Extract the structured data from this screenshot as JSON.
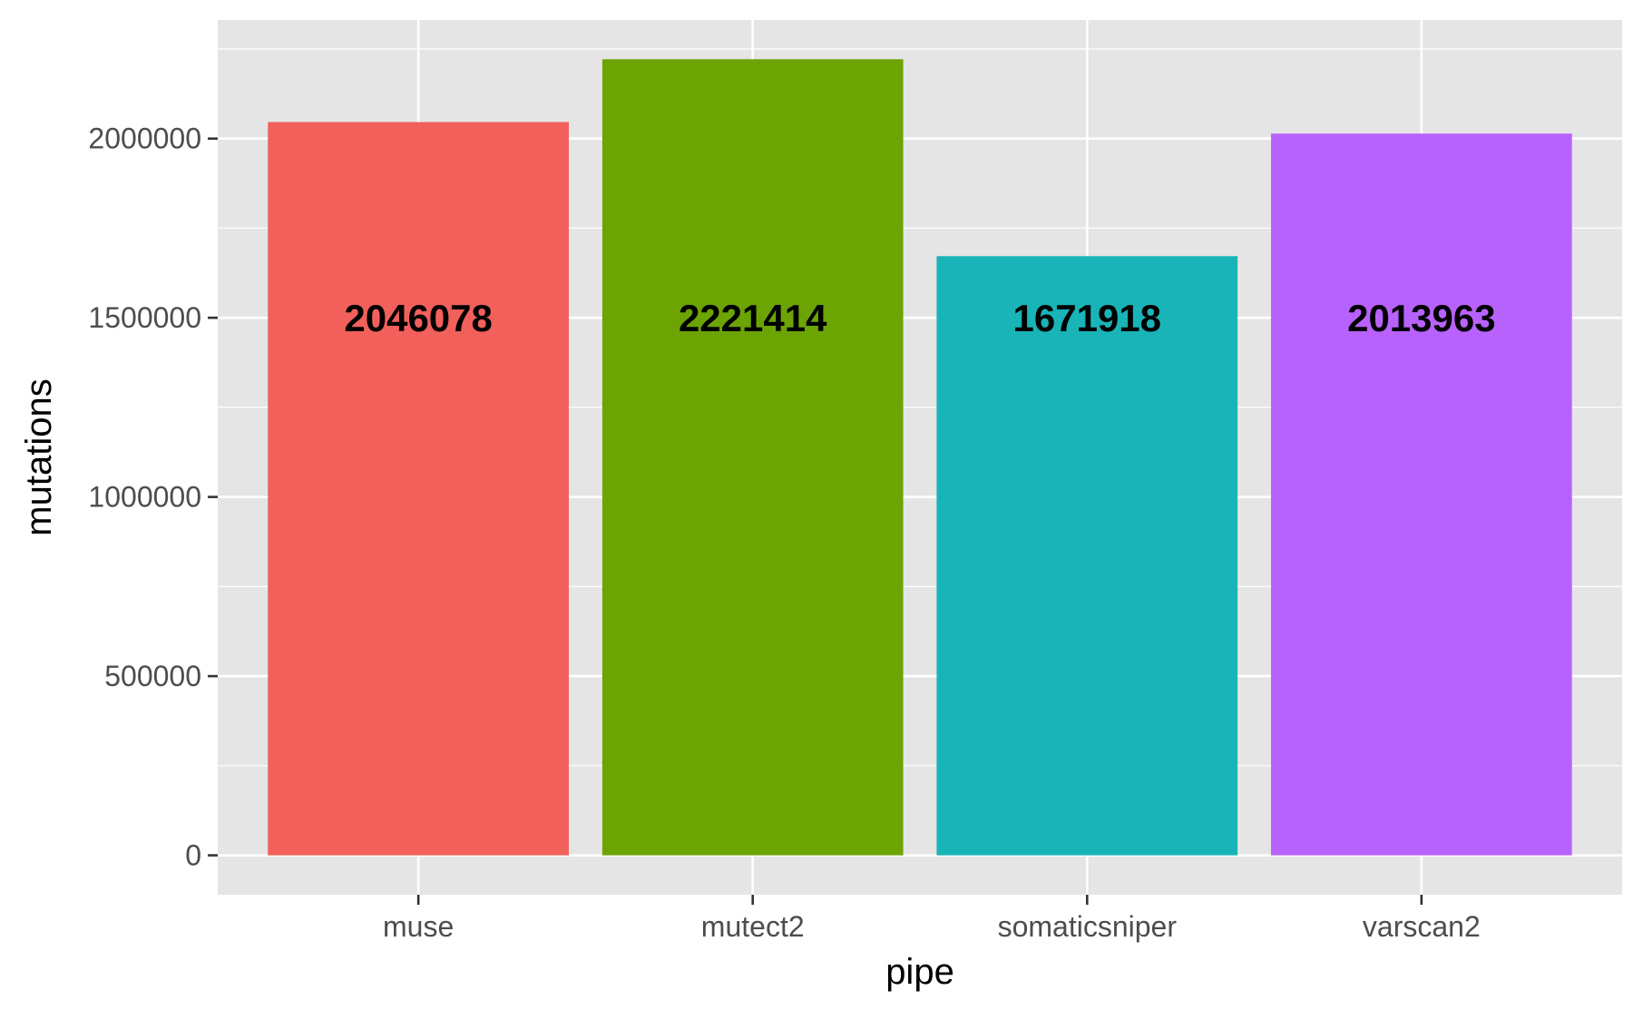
{
  "chart_data": {
    "type": "bar",
    "categories": [
      "muse",
      "mutect2",
      "somaticsniper",
      "varscan2"
    ],
    "values": [
      2046078,
      2221414,
      1671918,
      2013963
    ],
    "data_labels": [
      "2046078",
      "2221414",
      "1671918",
      "2013963"
    ],
    "colors": [
      "#F2605B",
      "#6CA404",
      "#19B4B8",
      "#B862FD"
    ],
    "xlabel": "pipe",
    "ylabel": "mutations",
    "ylim": [
      -110000,
      2331000
    ],
    "yticks": [
      0,
      500000,
      1000000,
      1500000,
      2000000
    ],
    "ytick_labels": [
      "0",
      "500000",
      "1000000",
      "1500000",
      "2000000"
    ],
    "data_label_y": 1500000,
    "grid": true,
    "legend": "none",
    "panel_color": "#E5E5E5",
    "grid_color": "#FFFFFF"
  }
}
